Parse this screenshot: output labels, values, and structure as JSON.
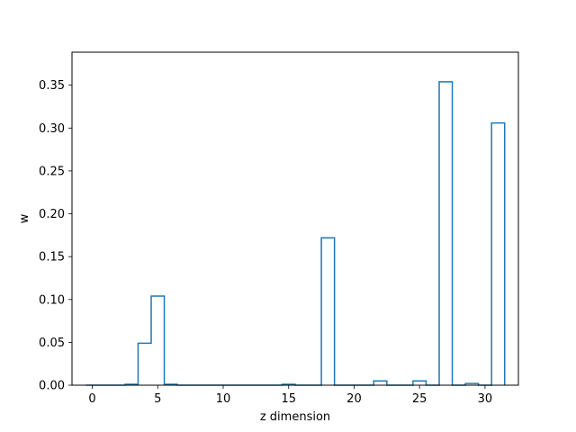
{
  "chart_data": {
    "type": "bar",
    "subtype": "step-histogram",
    "title": "",
    "xlabel": "z dimension",
    "ylabel": "w",
    "xlim": [
      -1.55,
      32.55
    ],
    "ylim": [
      0,
      0.3885
    ],
    "xticks": [
      0,
      5,
      10,
      15,
      20,
      25,
      30
    ],
    "yticks": [
      0.0,
      0.05,
      0.1,
      0.15,
      0.2,
      0.25,
      0.3,
      0.35
    ],
    "ytick_labels": [
      "0.00",
      "0.05",
      "0.10",
      "0.15",
      "0.20",
      "0.25",
      "0.30",
      "0.35"
    ],
    "xtick_labels": [
      "0",
      "5",
      "10",
      "15",
      "20",
      "25",
      "30"
    ],
    "bin_width": 1,
    "bins_start": -0.5,
    "values": [
      0.0,
      0.0,
      0.0,
      0.001,
      0.049,
      0.104,
      0.001,
      0.0,
      0.0,
      0.0,
      0.0,
      0.0,
      0.0,
      0.0,
      0.0,
      0.001,
      0.0,
      0.0,
      0.172,
      0.0,
      0.0,
      0.0,
      0.005,
      0.0,
      0.0,
      0.005,
      0.0,
      0.354,
      0.0,
      0.002,
      0.0,
      0.306
    ],
    "grid": false,
    "legend": "none",
    "colors": {
      "line": "#1f77b4",
      "axes": "#000000",
      "background": "#ffffff"
    }
  }
}
